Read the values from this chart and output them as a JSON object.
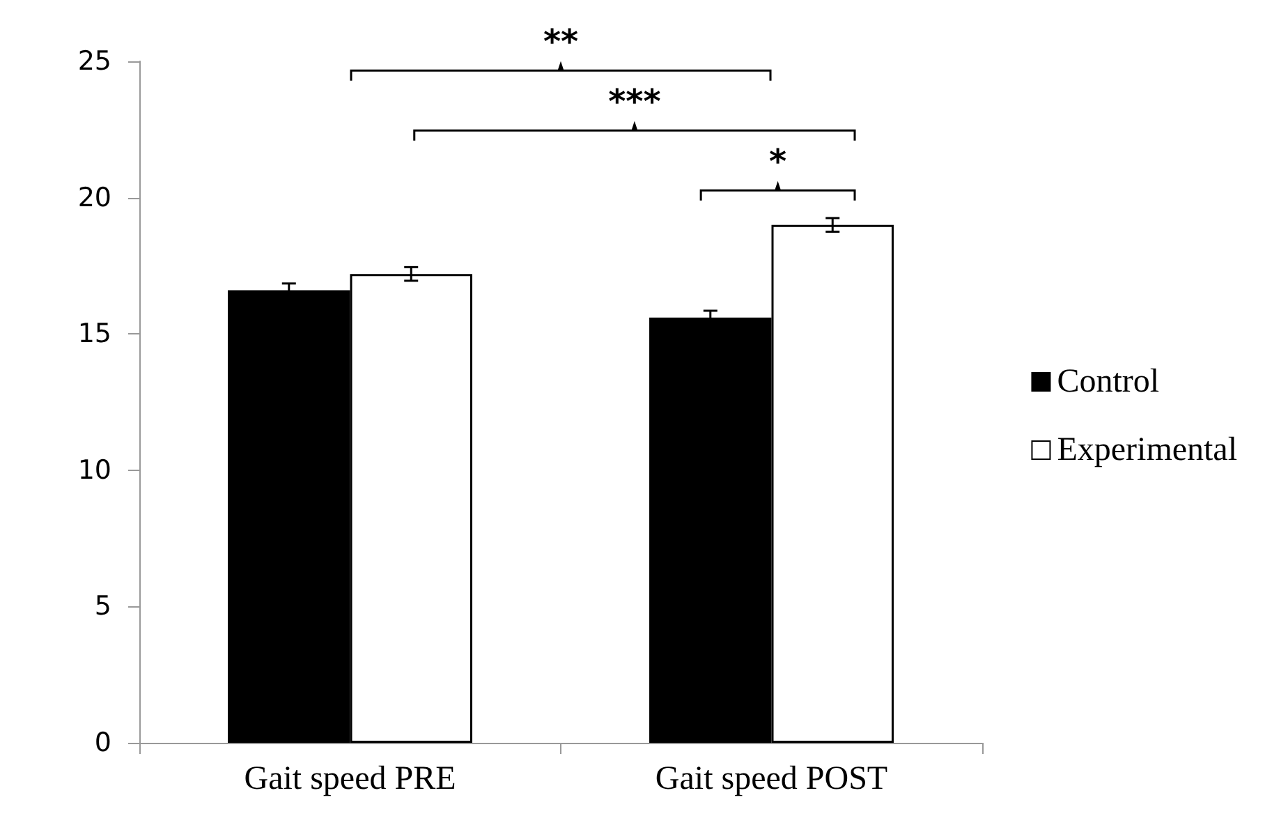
{
  "chart_data": {
    "type": "bar",
    "categories": [
      "Gait speed PRE",
      "Gait speed POST"
    ],
    "series": [
      {
        "name": "Control",
        "color": "#000000",
        "values": [
          16.6,
          15.6
        ],
        "errors": [
          0.25,
          0.25
        ]
      },
      {
        "name": "Experimental",
        "color": "#ffffff",
        "values": [
          17.2,
          19.0
        ],
        "errors": [
          0.25,
          0.25
        ]
      }
    ],
    "ylim": [
      0,
      25
    ],
    "yticks": [
      0,
      5,
      10,
      15,
      20,
      25
    ],
    "grid": false,
    "legend": "right",
    "annotations": [
      "**",
      "***",
      "*"
    ]
  }
}
